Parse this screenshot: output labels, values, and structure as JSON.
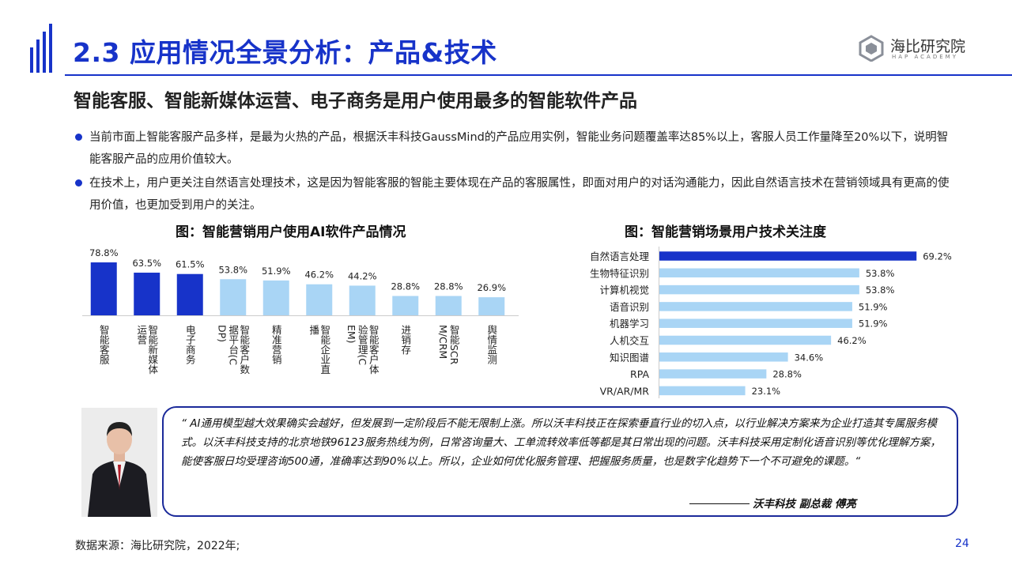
{
  "header": {
    "title": "2.3 应用情况全景分析：产品&技术",
    "logo_name": "海比研究院",
    "logo_sub": "HAP ACADEMY"
  },
  "subtitle": "智能客服、智能新媒体运营、电子商务是用户使用最多的智能软件产品",
  "bullets": [
    "当前市面上智能客服产品多样，是最为火热的产品，根据沃丰科技GaussMind的产品应用实例，智能业务问题覆盖率达85%以上，客服人员工作量降至20%以下，说明智能客服产品的应用价值较大。",
    "在技术上，用户更关注自然语言处理技术，这是因为智能客服的智能主要体现在产品的客服属性，即面对用户的对话沟通能力，因此自然语言技术在营销领域具有更高的使用价值，也更加受到用户的关注。"
  ],
  "chart_data": [
    {
      "type": "bar",
      "title": "图：智能营销用户使用AI软件产品情况",
      "categories": [
        "智能客服",
        "智能新媒体运营",
        "电子商务",
        "智能客户数据平台(CDP)",
        "精准营销",
        "智能企业直播",
        "智能客户体验管理(CEM)",
        "进销存",
        "智能SCRM/CRM",
        "舆情监测"
      ],
      "values": [
        78.8,
        63.5,
        61.5,
        53.8,
        51.9,
        46.2,
        44.2,
        28.8,
        28.8,
        26.9
      ],
      "value_labels": [
        "78.8%",
        "63.5%",
        "61.5%",
        "53.8%",
        "51.9%",
        "46.2%",
        "44.2%",
        "28.8%",
        "28.8%",
        "26.9%"
      ],
      "highlight_count": 3,
      "colors": {
        "highlight": "#1733c9",
        "normal": "#a9d5f5"
      },
      "ylim": [
        0,
        100
      ],
      "xlabel": "",
      "ylabel": ""
    },
    {
      "type": "bar",
      "orientation": "horizontal",
      "title": "图：智能营销场景用户技术关注度",
      "categories": [
        "自然语言处理",
        "生物特征识别",
        "计算机视觉",
        "语音识别",
        "机器学习",
        "人机交互",
        "知识图谱",
        "RPA",
        "VR/AR/MR"
      ],
      "values": [
        69.2,
        53.8,
        53.8,
        51.9,
        51.9,
        46.2,
        34.6,
        28.8,
        23.1
      ],
      "value_labels": [
        "69.2%",
        "53.8%",
        "53.8%",
        "51.9%",
        "51.9%",
        "46.2%",
        "34.6%",
        "28.8%",
        "23.1%"
      ],
      "highlight_count": 1,
      "colors": {
        "highlight": "#1733c9",
        "normal": "#a9d5f5"
      },
      "xlim": [
        0,
        100
      ],
      "xlabel": "",
      "ylabel": ""
    }
  ],
  "quote": {
    "text": "“ AI通用模型越大效果确实会越好，但发展到一定阶段后不能无限制上涨。所以沃丰科技正在探索垂直行业的切入点，以行业解决方案来为企业打造其专属服务模式。以沃丰科技支持的北京地铁96123服务热线为例，日常咨询量大、工单流转效率低等都是其日常出现的问题。沃丰科技采用定制化语音识别等优化理解方案，能使客服日均受理咨询500通，准确率达到90%以上。所以，企业如何优化服务管理、把握服务质量，也是数字化趋势下一个不可避免的课题。“",
    "signature": "沃丰科技   副总裁  傅亮"
  },
  "footer": {
    "source": "数据来源：海比研究院，2022年;",
    "page": "24"
  }
}
